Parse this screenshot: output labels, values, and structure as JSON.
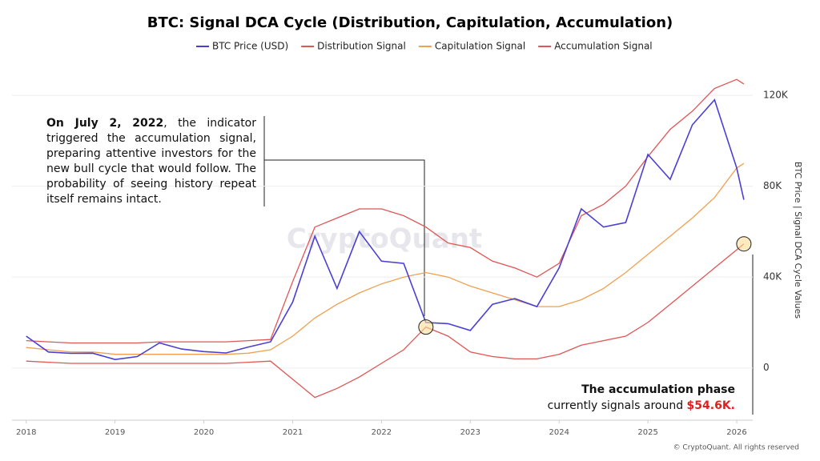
{
  "chart_data": {
    "type": "line",
    "title": "BTC: Signal DCA Cycle (Distribution, Capitulation, Accumulation)",
    "y_label": "BTC Price | Signal DCA Cycle Values",
    "watermark": "CryptoQuant",
    "credit": "© CryptoQuant. All rights reserved",
    "x": [
      2018,
      2018.25,
      2018.5,
      2018.75,
      2019,
      2019.25,
      2019.5,
      2019.75,
      2020,
      2020.25,
      2020.5,
      2020.75,
      2021,
      2021.25,
      2021.5,
      2021.75,
      2022,
      2022.25,
      2022.5,
      2022.75,
      2023,
      2023.25,
      2023.5,
      2023.75,
      2024,
      2024.25,
      2024.5,
      2024.75,
      2025,
      2025.25,
      2025.5,
      2025.75,
      2026,
      2026.08
    ],
    "xlim": [
      2017.84,
      2026.18
    ],
    "xticks": [
      2018,
      2019,
      2020,
      2021,
      2022,
      2023,
      2024,
      2025,
      2026
    ],
    "ylim": [
      -23000,
      132000
    ],
    "yticks": [
      0,
      {
        "value": 40000,
        "label": "40K"
      },
      {
        "value": 80000,
        "label": "80K"
      },
      {
        "value": 120000,
        "label": "120K"
      }
    ],
    "grid": true,
    "series": [
      {
        "name": "BTC Price (USD)",
        "color": "#4a3fd4",
        "values": [
          14000,
          7000,
          6400,
          6500,
          3700,
          5000,
          11000,
          8300,
          7200,
          6600,
          9200,
          11500,
          29000,
          58000,
          35000,
          60000,
          47000,
          46000,
          20000,
          19500,
          16500,
          28000,
          30500,
          27000,
          44000,
          70000,
          62000,
          64000,
          94000,
          83000,
          107000,
          118000,
          88000,
          74000
        ]
      },
      {
        "name": "Distribution Signal",
        "color": "#e05555",
        "values": [
          12000,
          11500,
          11000,
          11000,
          11000,
          11000,
          11500,
          11500,
          11500,
          11500,
          12000,
          12500,
          38000,
          62000,
          66000,
          70000,
          70000,
          67000,
          62000,
          55000,
          53000,
          47000,
          44000,
          40000,
          46000,
          67000,
          72000,
          80000,
          93000,
          105000,
          113000,
          123000,
          127000,
          125000
        ]
      },
      {
        "name": "Capitulation Signal",
        "color": "#f0a050",
        "values": [
          9000,
          8000,
          7000,
          7000,
          6000,
          6000,
          6000,
          6000,
          6000,
          6000,
          6500,
          8000,
          14000,
          22000,
          28000,
          33000,
          37000,
          40000,
          42000,
          40000,
          36000,
          33000,
          30000,
          27000,
          27000,
          30000,
          35000,
          42000,
          50000,
          58000,
          66000,
          75000,
          88000,
          90000
        ]
      },
      {
        "name": "Accumulation Signal",
        "color": "#e05555",
        "values": [
          3000,
          2500,
          2000,
          2000,
          2000,
          2000,
          2000,
          2000,
          2000,
          2000,
          2500,
          3000,
          -5000,
          -13000,
          -9000,
          -4000,
          2000,
          8000,
          18000,
          14000,
          7000,
          5000,
          4000,
          4000,
          6000,
          10000,
          12000,
          14000,
          20000,
          28000,
          36000,
          44000,
          52000,
          54600
        ]
      }
    ],
    "annotations": [
      {
        "bold": "On July 2, 2022",
        "text": ", the indicator triggered the accumulation signal, preparing attentive investors for the new bull cycle that would follow. The probability of seeing history repeat itself remains intact."
      },
      {
        "bold": "The accumulation phase",
        "text": "currently signals around",
        "highlight": "$54.6K."
      }
    ]
  }
}
